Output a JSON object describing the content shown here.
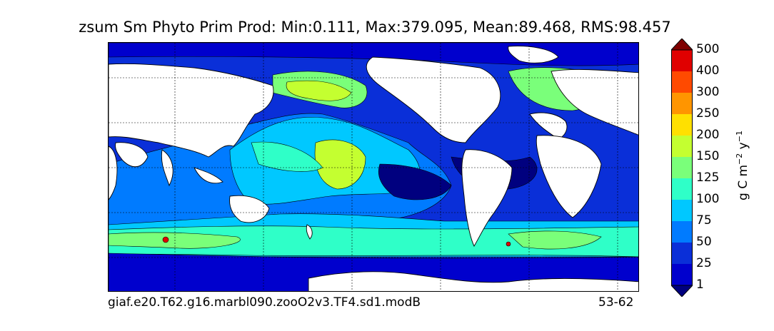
{
  "title": "zsum Sm Phyto Prim Prod: Min:0.111, Max:379.095, Mean:89.468, RMS:98.457",
  "footer": {
    "case_name": "giaf.e20.T62.g16.marbl090.zooO2v3.TF4.sd1.modB",
    "years": "53-62"
  },
  "colorbar": {
    "unit_base": "g C m",
    "unit_exp1": "−2",
    "unit_mid": " y",
    "unit_exp2": "−1",
    "levels": [
      "1",
      "25",
      "50",
      "75",
      "100",
      "125",
      "150",
      "200",
      "250",
      "300",
      "400",
      "500"
    ],
    "colors": [
      "#00007f",
      "#0000cd",
      "#0a2fd8",
      "#007bff",
      "#00c8ff",
      "#2fffc8",
      "#7aff7a",
      "#c4ff30",
      "#ffe000",
      "#ff9500",
      "#ff4a00",
      "#e00000",
      "#7f0000"
    ],
    "extend": "both"
  },
  "map": {
    "projection": "cylindrical",
    "grid": true,
    "land_color": "#ffffff",
    "coastline_color": "#000000"
  }
}
